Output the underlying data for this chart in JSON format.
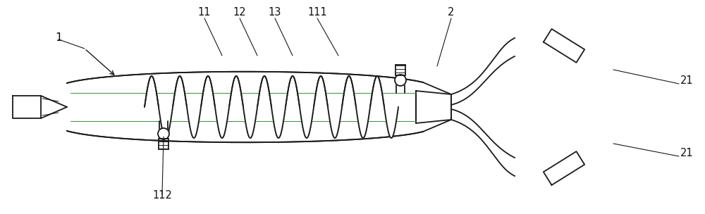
{
  "bg_color": "#ffffff",
  "line_color": "#1a1a1a",
  "line_width": 1.3,
  "thin_line": 0.7,
  "green_color": "#3a8a3a",
  "label_color": "#111111",
  "label_fontsize": 10.5,
  "figsize": [
    10.0,
    3.04
  ],
  "dpi": 100
}
